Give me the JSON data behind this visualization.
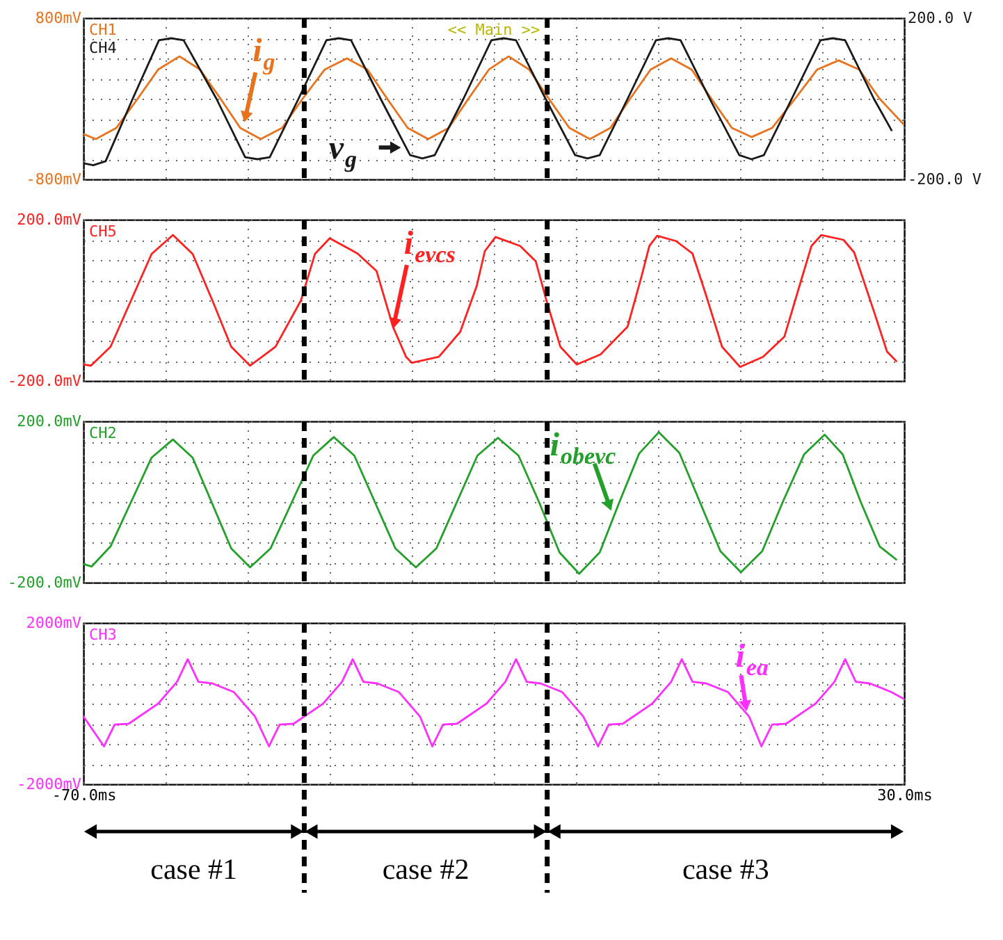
{
  "chart_data": [
    {
      "type": "line",
      "tick_labels": "y",
      "grid": true,
      "xlim": [
        -70,
        30
      ],
      "xticks": [
        {
          "value": -70,
          "label": null
        },
        {
          "value": -60,
          "label": null
        },
        {
          "value": -50,
          "label": null
        },
        {
          "value": -40,
          "label": null
        },
        {
          "value": -30,
          "label": null
        },
        {
          "value": -20,
          "label": null
        },
        {
          "value": -10,
          "label": null
        },
        {
          "value": 0,
          "label": null
        },
        {
          "value": 10,
          "label": null
        },
        {
          "value": 20,
          "label": null
        },
        {
          "value": 30,
          "label": null
        }
      ],
      "ylim": [
        -800,
        800
      ],
      "yticks": [
        {
          "value": -800,
          "label": "-800mV"
        },
        {
          "value": -600,
          "label": null
        },
        {
          "value": -400,
          "label": null
        },
        {
          "value": -200,
          "label": null
        },
        {
          "value": 0,
          "label": null
        },
        {
          "value": 200,
          "label": null
        },
        {
          "value": 400,
          "label": null
        },
        {
          "value": 600,
          "label": null
        },
        {
          "value": 800,
          "label": "800mV"
        }
      ],
      "y2lim": [
        -200,
        200
      ],
      "y2ticks": [
        {
          "value": -200,
          "label": "-200.0 V"
        },
        {
          "value": 200,
          "label": "200.0 V"
        }
      ],
      "series": [
        {
          "name": "CH1",
          "color": "#e8731c",
          "x": [
            -70,
            -68.5,
            -66,
            -63.4,
            -60.9,
            -58.3,
            -55.8,
            -53.3,
            -50.9,
            -48.4,
            -45.8,
            -43.3,
            -40.6,
            -37.9,
            -35.4,
            -33,
            -30.5,
            -28,
            -25.5,
            -23.1,
            -20.6,
            -18.2,
            -15.7,
            -13.3,
            -10.8,
            -8.3,
            -5.8,
            -3.4,
            -0.9,
            1.6,
            4.1,
            6.5,
            9,
            11.4,
            13.9,
            16.7,
            19.4,
            22,
            24.5,
            27,
            30
          ],
          "values": [
            -350,
            -400,
            -290,
            0,
            290,
            420,
            290,
            0,
            -290,
            -400,
            -290,
            0,
            290,
            400,
            290,
            0,
            -290,
            -400,
            -290,
            0,
            290,
            420,
            290,
            0,
            -290,
            -400,
            -290,
            0,
            290,
            400,
            290,
            0,
            -290,
            -380,
            -290,
            0,
            290,
            380,
            290,
            0,
            -260
          ]
        },
        {
          "name": "CH4",
          "color": "#1a1a1a",
          "axis": "y2",
          "x": [
            -70,
            -68.8,
            -67.3,
            -64,
            -60.8,
            -59.3,
            -57.8,
            -53.8,
            -50.3,
            -48.8,
            -47.3,
            -43.8,
            -40.4,
            -38.9,
            -37.4,
            -33.8,
            -30.2,
            -28.7,
            -27.2,
            -23.7,
            -20.3,
            -18.8,
            -17.3,
            -13.7,
            -10.1,
            -8.6,
            -7.1,
            -3.7,
            -0.25,
            1.25,
            2.75,
            6.3,
            9.9,
            11.4,
            12.9,
            16.3,
            19.8,
            21.3,
            22.8,
            26.3,
            28.5
          ],
          "values": [
            -160,
            -165,
            -155,
            0,
            145,
            150,
            145,
            0,
            -145,
            -150,
            -145,
            0,
            145,
            150,
            145,
            0,
            -140,
            -148,
            -140,
            0,
            145,
            150,
            145,
            0,
            -140,
            -148,
            -140,
            0,
            145,
            150,
            145,
            0,
            -140,
            -150,
            -140,
            0,
            145,
            150,
            145,
            0,
            -80
          ]
        }
      ],
      "ref_lines": [
        {
          "axis": "x",
          "value": -43.1,
          "line_style": "dashed",
          "color": "#000000"
        },
        {
          "axis": "x",
          "value": -13.5,
          "line_style": "dashed",
          "color": "#000000"
        }
      ],
      "annotations": [
        {
          "text": "i$_{g}$",
          "x": -50.4,
          "y": -235
        },
        {
          "text": "v$_{g}$",
          "x": -31.3,
          "y": -484
        },
        "<< Main >>"
      ]
    },
    {
      "type": "line",
      "tick_labels": "y",
      "grid": true,
      "xlim": [
        -70,
        30
      ],
      "xticks": [
        {
          "value": -70,
          "label": null
        },
        {
          "value": -60,
          "label": null
        },
        {
          "value": -50,
          "label": null
        },
        {
          "value": -40,
          "label": null
        },
        {
          "value": -30,
          "label": null
        },
        {
          "value": -20,
          "label": null
        },
        {
          "value": -10,
          "label": null
        },
        {
          "value": 0,
          "label": null
        },
        {
          "value": 10,
          "label": null
        },
        {
          "value": 20,
          "label": null
        },
        {
          "value": 30,
          "label": null
        }
      ],
      "ylim": [
        -200,
        200
      ],
      "yticks": [
        {
          "value": -200,
          "label": "-200.0mV"
        },
        {
          "value": -150,
          "label": null
        },
        {
          "value": -100,
          "label": null
        },
        {
          "value": -50,
          "label": null
        },
        {
          "value": 0,
          "label": null
        },
        {
          "value": 50,
          "label": null
        },
        {
          "value": 100,
          "label": null
        },
        {
          "value": 150,
          "label": null
        },
        {
          "value": 200,
          "label": "200.0mV"
        }
      ],
      "series": [
        {
          "name": "CH5",
          "color": "#ff2020",
          "x": [
            -70,
            -69.1,
            -66.7,
            -64.2,
            -61.7,
            -59.1,
            -56.7,
            -54.3,
            -52,
            -49.7,
            -46.6,
            -43.5,
            -41.8,
            -40,
            -36.6,
            -34.3,
            -32.3,
            -30.7,
            -30,
            -26.7,
            -24.1,
            -22.1,
            -21.1,
            -19.8,
            -16.8,
            -14.9,
            -13.6,
            -11.9,
            -9.9,
            -7,
            -3.7,
            -2,
            -1.05,
            -0.1,
            2.2,
            4.2,
            5.9,
            7.8,
            10,
            12.8,
            15.4,
            17.4,
            18.7,
            19.9,
            22.6,
            23.9,
            26.3,
            27.9,
            29.1
          ],
          "values": [
            -159,
            -162,
            -115,
            0,
            115,
            162,
            115,
            0,
            -115,
            -162,
            -115,
            0,
            115,
            154,
            116,
            73,
            -65,
            -140,
            -155,
            -140,
            -78,
            35,
            122,
            157,
            135,
            97,
            0,
            -115,
            -159,
            -134,
            -65,
            60,
            135,
            160,
            147,
            116,
            10,
            -115,
            -165,
            -140,
            -90,
            47,
            135,
            162,
            150,
            119,
            -27,
            -127,
            -152
          ]
        }
      ],
      "ref_lines": [
        {
          "axis": "x",
          "value": -43.1,
          "line_style": "dashed",
          "color": "#000000"
        },
        {
          "axis": "x",
          "value": -13.5,
          "line_style": "dashed",
          "color": "#000000"
        }
      ],
      "annotations": [
        {
          "text": "i$_{evcs}$",
          "x": -32.3,
          "y": -71
        }
      ]
    },
    {
      "type": "line",
      "tick_labels": "y",
      "grid": true,
      "xlim": [
        -70,
        30
      ],
      "xticks": [
        {
          "value": -70,
          "label": null
        },
        {
          "value": -60,
          "label": null
        },
        {
          "value": -50,
          "label": null
        },
        {
          "value": -40,
          "label": null
        },
        {
          "value": -30,
          "label": null
        },
        {
          "value": -20,
          "label": null
        },
        {
          "value": -10,
          "label": null
        },
        {
          "value": 0,
          "label": null
        },
        {
          "value": 10,
          "label": null
        },
        {
          "value": 20,
          "label": null
        },
        {
          "value": 30,
          "label": null
        }
      ],
      "ylim": [
        -200,
        200
      ],
      "yticks": [
        {
          "value": -200,
          "label": "-200.0mV"
        },
        {
          "value": -150,
          "label": null
        },
        {
          "value": -100,
          "label": null
        },
        {
          "value": -50,
          "label": null
        },
        {
          "value": 0,
          "label": null
        },
        {
          "value": 50,
          "label": null
        },
        {
          "value": 100,
          "label": null
        },
        {
          "value": 150,
          "label": null
        },
        {
          "value": 200,
          "label": "200.0mV"
        }
      ],
      "series": [
        {
          "name": "CH2",
          "color": "#22a02a",
          "x": [
            -70,
            -69,
            -66.7,
            -64.2,
            -61.7,
            -59.1,
            -56.7,
            -54.4,
            -52,
            -49.7,
            -47.2,
            -44.6,
            -42,
            -39.5,
            -37,
            -34.5,
            -32,
            -29.5,
            -27,
            -24.5,
            -22,
            -19.5,
            -17,
            -14.5,
            -12,
            -9.6,
            -7.1,
            -4.7,
            -2.3,
            0.1,
            2.6,
            5.1,
            7.6,
            10.1,
            12.7,
            15.2,
            17.8,
            20.3,
            22.5,
            24.7,
            27,
            29.1
          ],
          "values": [
            -154,
            -160,
            -110,
            0,
            110,
            155,
            110,
            0,
            -115,
            -162,
            -115,
            0,
            115,
            161,
            115,
            0,
            -115,
            -162,
            -115,
            0,
            115,
            159,
            115,
            0,
            -125,
            -178,
            -125,
            0,
            120,
            173,
            122,
            0,
            -122,
            -174,
            -122,
            0,
            118,
            167,
            118,
            0,
            -110,
            -144
          ]
        }
      ],
      "ref_lines": [
        {
          "axis": "x",
          "value": -43.1,
          "line_style": "dashed",
          "color": "#000000"
        },
        {
          "axis": "x",
          "value": -13.5,
          "line_style": "dashed",
          "color": "#000000"
        }
      ],
      "annotations": [
        {
          "text": "i$_{obevc}$",
          "x": -5.7,
          "y": -22
        }
      ]
    },
    {
      "type": "line",
      "grid": true,
      "xlim": [
        -70,
        30
      ],
      "xticks": [
        {
          "value": -70,
          "label": "-70.0ms"
        },
        {
          "value": -60,
          "label": null
        },
        {
          "value": -50,
          "label": null
        },
        {
          "value": -40,
          "label": null
        },
        {
          "value": -30,
          "label": null
        },
        {
          "value": -20,
          "label": null
        },
        {
          "value": -10,
          "label": null
        },
        {
          "value": 0,
          "label": null
        },
        {
          "value": 10,
          "label": null
        },
        {
          "value": 20,
          "label": null
        },
        {
          "value": 30,
          "label": "30.0ms"
        }
      ],
      "ylim": [
        -2000,
        2000
      ],
      "yticks": [
        {
          "value": -2000,
          "label": "-2000mV"
        },
        {
          "value": -1500,
          "label": null
        },
        {
          "value": -1000,
          "label": null
        },
        {
          "value": -500,
          "label": null
        },
        {
          "value": 0,
          "label": null
        },
        {
          "value": 500,
          "label": null
        },
        {
          "value": 1000,
          "label": null
        },
        {
          "value": 1500,
          "label": null
        },
        {
          "value": 2000,
          "label": "2000mV"
        }
      ],
      "series": [
        {
          "name": "CH3",
          "color": "#ff30ff",
          "x": [
            -70,
            -67.5,
            -66.2,
            -64.5,
            -60.9,
            -58.6,
            -57.3,
            -56,
            -54.3,
            -51.7,
            -49.1,
            -47.4,
            -46.1,
            -44.4,
            -40.8,
            -38.5,
            -37.2,
            -35.9,
            -34.2,
            -31.6,
            -29,
            -27.5,
            -26.2,
            -24.5,
            -20.9,
            -18.6,
            -17.3,
            -16,
            -14.3,
            -11.7,
            -9.1,
            -7.3,
            -6,
            -4.3,
            -0.7,
            1.6,
            2.9,
            4.2,
            5.9,
            8.5,
            11.1,
            12.6,
            13.9,
            15.6,
            19.2,
            21.5,
            22.8,
            24.1,
            25.8,
            28.4,
            30
          ],
          "values": [
            -320,
            -1060,
            -520,
            -500,
            0,
            540,
            1100,
            540,
            500,
            290,
            -320,
            -1060,
            -520,
            -500,
            0,
            540,
            1100,
            540,
            500,
            290,
            -320,
            -1060,
            -520,
            -500,
            0,
            540,
            1100,
            540,
            500,
            290,
            -320,
            -1060,
            -520,
            -500,
            0,
            540,
            1100,
            540,
            500,
            290,
            -320,
            -1060,
            -520,
            -500,
            0,
            540,
            1100,
            540,
            500,
            290,
            110
          ]
        }
      ],
      "ref_lines": [
        {
          "axis": "x",
          "value": -43.1,
          "line_style": "dashed",
          "color": "#000000"
        },
        {
          "axis": "x",
          "value": -13.5,
          "line_style": "dashed",
          "color": "#000000"
        }
      ],
      "annotations": [
        {
          "text": "i$_{ea}$",
          "x": 10.8,
          "y": -195
        },
        "case #1",
        "case #2",
        "case #3"
      ]
    }
  ]
}
